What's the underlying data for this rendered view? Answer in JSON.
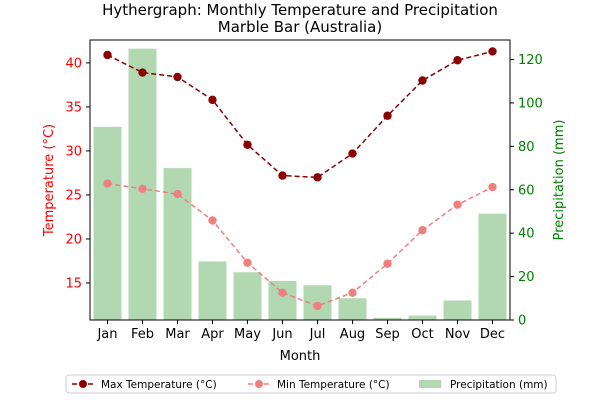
{
  "chart_data": {
    "type": "bar+line",
    "title": "Hythergraph: Monthly Temperature and Precipitation",
    "subtitle": "Marble Bar (Australia)",
    "xlabel": "Month",
    "ylabel_left": "Temperature (°C)",
    "ylabel_right": "Precipitation (mm)",
    "categories": [
      "Jan",
      "Feb",
      "Mar",
      "Apr",
      "May",
      "Jun",
      "Jul",
      "Aug",
      "Sep",
      "Oct",
      "Nov",
      "Dec"
    ],
    "ylim_left": [
      10.8,
      42.6
    ],
    "ylim_right": [
      0,
      129
    ],
    "yticks_left": [
      15,
      20,
      25,
      30,
      35,
      40
    ],
    "yticks_right": [
      0,
      20,
      40,
      60,
      80,
      100,
      120
    ],
    "grid": false,
    "legend_position": "bottom",
    "series": [
      {
        "name": "Max Temperature (°C)",
        "kind": "line",
        "axis": "left",
        "color": "#8b0000",
        "linestyle": "dashed",
        "values": [
          40.9,
          38.9,
          38.4,
          35.8,
          30.7,
          27.2,
          27.0,
          29.7,
          34.0,
          38.0,
          40.3,
          41.3
        ]
      },
      {
        "name": "Min Temperature (°C)",
        "kind": "line",
        "axis": "left",
        "color": "#f08080",
        "linestyle": "dashed",
        "values": [
          26.3,
          25.7,
          25.1,
          22.1,
          17.3,
          13.9,
          12.4,
          13.9,
          17.2,
          21.0,
          23.9,
          25.9
        ]
      },
      {
        "name": "Precipitation (mm)",
        "kind": "bar",
        "axis": "right",
        "color": "#b2d8b2",
        "values": [
          89,
          125,
          70,
          27,
          22,
          18,
          16,
          10,
          1,
          2,
          9,
          49
        ]
      }
    ],
    "colors": {
      "left_axis": "#ff0000",
      "right_axis": "#008000"
    }
  }
}
